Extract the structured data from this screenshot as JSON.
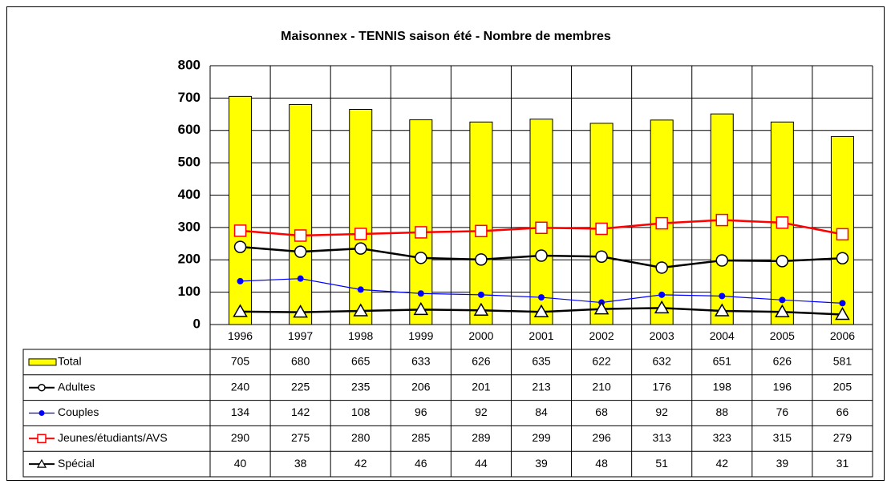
{
  "chart_data": {
    "type": "bar",
    "title": "Maisonnex - TENNIS saison été - Nombre de membres",
    "categories": [
      "1996",
      "1997",
      "1998",
      "1999",
      "2000",
      "2001",
      "2002",
      "2003",
      "2004",
      "2005",
      "2006"
    ],
    "series": [
      {
        "name": "Total",
        "type": "bar",
        "color": "#ffff00",
        "values": [
          705,
          680,
          665,
          633,
          626,
          635,
          622,
          632,
          651,
          626,
          581
        ]
      },
      {
        "name": "Adultes",
        "type": "line",
        "marker": "circle",
        "color": "#000000",
        "values": [
          240,
          225,
          235,
          206,
          201,
          213,
          210,
          176,
          198,
          196,
          205
        ]
      },
      {
        "name": "Couples",
        "type": "line",
        "marker": "dot",
        "color": "#0000ff",
        "values": [
          134,
          142,
          108,
          96,
          92,
          84,
          68,
          92,
          88,
          76,
          66
        ]
      },
      {
        "name": "Jeunes/étudiants/AVS",
        "type": "line",
        "marker": "square",
        "color": "#ff0000",
        "values": [
          290,
          275,
          280,
          285,
          289,
          299,
          296,
          313,
          323,
          315,
          279
        ]
      },
      {
        "name": "Spécial",
        "type": "line",
        "marker": "triangle",
        "color": "#000000",
        "values": [
          40,
          38,
          42,
          46,
          44,
          39,
          48,
          51,
          42,
          39,
          31
        ]
      }
    ],
    "ylim": [
      0,
      800
    ],
    "yticks": [
      0,
      100,
      200,
      300,
      400,
      500,
      600,
      700,
      800
    ],
    "grid": true,
    "data_table": true
  }
}
